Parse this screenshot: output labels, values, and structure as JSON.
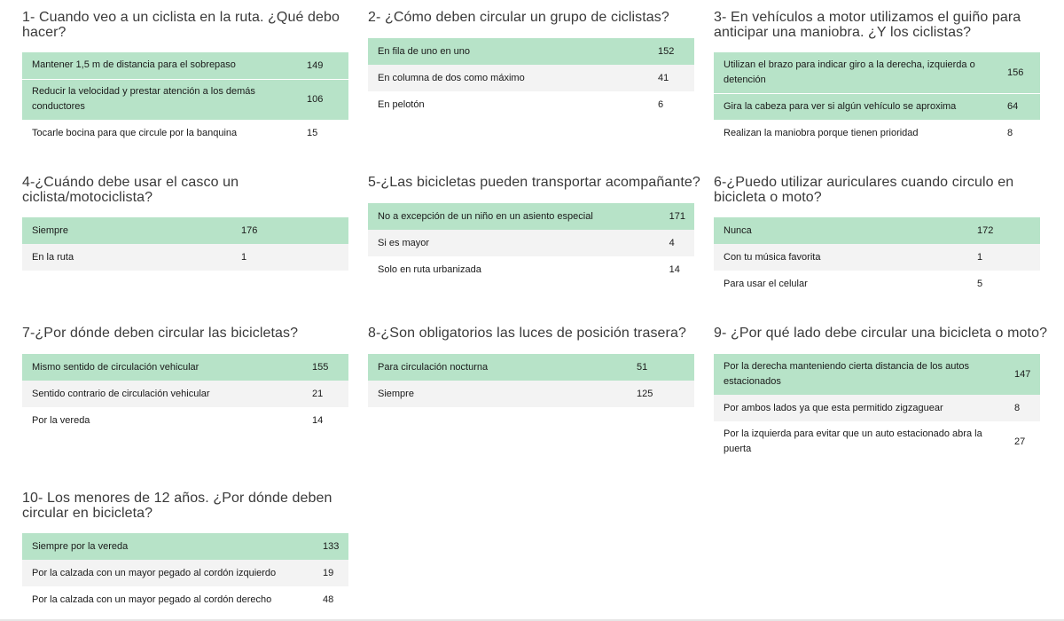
{
  "questions": [
    {
      "title": "1- Cuando veo a un ciclista en la ruta. ¿Qué debo hacer?",
      "rows": [
        {
          "label": "Mantener 1,5 m de distancia para el sobrepaso",
          "value": "149"
        },
        {
          "label": "Reducir la velocidad y prestar atención a los demás conductores",
          "value": "106"
        },
        {
          "label": "Tocarle bocina para que circule por la banquina",
          "value": "15"
        }
      ]
    },
    {
      "title": "2- ¿Cómo deben circular un grupo de ciclistas?",
      "rows": [
        {
          "label": "En fila de uno en uno",
          "value": "152"
        },
        {
          "label": "En columna de dos como máximo",
          "value": "41"
        },
        {
          "label": "En pelotón",
          "value": "6"
        }
      ]
    },
    {
      "title": "3- En vehículos a motor utilizamos el guiño para anticipar una maniobra. ¿Y los ciclistas?",
      "rows": [
        {
          "label": "Utilizan el brazo para indicar giro a la derecha, izquierda o detención",
          "value": "156"
        },
        {
          "label": "Gira la cabeza para ver si algún vehículo se aproxima",
          "value": "64"
        },
        {
          "label": "Realizan la maniobra porque tienen prioridad",
          "value": "8"
        }
      ]
    },
    {
      "title": "4-¿Cuándo debe usar el casco un ciclista/motociclista?",
      "rows": [
        {
          "label": "Siempre",
          "value": "176"
        },
        {
          "label": "En la ruta",
          "value": "1"
        }
      ]
    },
    {
      "title": "5-¿Las bicicletas pueden transportar acompañante?",
      "rows": [
        {
          "label": "No a excepción de un niño en un asiento especial",
          "value": "171"
        },
        {
          "label": "Si es mayor",
          "value": "4"
        },
        {
          "label": "Solo en ruta urbanizada",
          "value": "14"
        }
      ]
    },
    {
      "title": "6-¿Puedo utilizar auriculares cuando circulo en bicicleta o moto?",
      "rows": [
        {
          "label": "Nunca",
          "value": "172"
        },
        {
          "label": "Con tu música favorita",
          "value": "1"
        },
        {
          "label": "Para usar el celular",
          "value": "5"
        }
      ]
    },
    {
      "title": "7-¿Por dónde deben circular las bicicletas?",
      "rows": [
        {
          "label": "Mismo sentido de circulación vehicular",
          "value": "155"
        },
        {
          "label": "Sentido contrario de circulación vehicular",
          "value": "21"
        },
        {
          "label": "Por la vereda",
          "value": "14"
        }
      ]
    },
    {
      "title": "8-¿Son obligatorios las luces de posición trasera?",
      "rows": [
        {
          "label": "Para circulación nocturna",
          "value": "51"
        },
        {
          "label": "Siempre",
          "value": "125"
        }
      ]
    },
    {
      "title": "9- ¿Por qué lado debe circular una bicicleta o moto?",
      "rows": [
        {
          "label": "Por la derecha manteniendo cierta distancia de los autos estacionados",
          "value": "147"
        },
        {
          "label": "Por ambos lados ya que esta permitido zigzaguear",
          "value": "8"
        },
        {
          "label": "Por la izquierda para evitar que un auto estacionado abra la puerta",
          "value": "27"
        }
      ]
    },
    {
      "title": "10- Los menores de 12 años. ¿Por dónde deben circular en bicicleta?",
      "rows": [
        {
          "label": "Siempre por la vereda",
          "value": "133"
        },
        {
          "label": "Por la calzada con un mayor pegado al cordón izquierdo",
          "value": "19"
        },
        {
          "label": "Por la calzada con un mayor pegado al cordón derecho",
          "value": "48"
        }
      ]
    }
  ]
}
